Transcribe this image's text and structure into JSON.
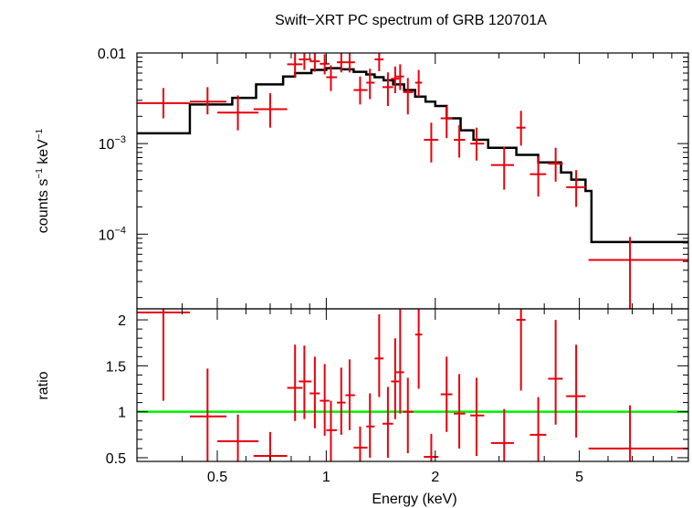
{
  "title": "Swift−XRT PC spectrum of GRB 120701A",
  "colors": {
    "data": "#e8000b",
    "model": "#000000",
    "unity": "#00ee00",
    "axes": "#000000"
  },
  "chart_data": [
    {
      "type": "scatter",
      "panel": "spectrum",
      "title": "Swift−XRT PC spectrum of GRB 120701A",
      "ylabel_parts": {
        "counts": "counts s",
        "neg1a": "−1",
        "kev": " keV",
        "neg1b": "−1"
      },
      "xscale": "log",
      "yscale": "log",
      "xlim": [
        0.3,
        10.0
      ],
      "ylim": [
        1.5e-05,
        0.01
      ],
      "ytick_labels": [
        {
          "value": 0.01,
          "base": "0.01",
          "exp": ""
        },
        {
          "value": 0.001,
          "base": "10",
          "exp": "−3"
        },
        {
          "value": 0.0001,
          "base": "10",
          "exp": "−4"
        }
      ],
      "series": [
        {
          "kind": "data",
          "points": [
            {
              "x": 0.355,
              "xlo": 0.3,
              "xhi": 0.42,
              "y": 0.0028,
              "ylo": 0.0019,
              "yhi": 0.0041
            },
            {
              "x": 0.47,
              "xlo": 0.42,
              "xhi": 0.53,
              "y": 0.0029,
              "ylo": 0.0021,
              "yhi": 0.0042
            },
            {
              "x": 0.57,
              "xlo": 0.5,
              "xhi": 0.65,
              "y": 0.0022,
              "ylo": 0.0014,
              "yhi": 0.0034
            },
            {
              "x": 0.7,
              "xlo": 0.63,
              "xhi": 0.78,
              "y": 0.0024,
              "ylo": 0.0015,
              "yhi": 0.0036
            },
            {
              "x": 0.82,
              "xlo": 0.78,
              "xhi": 0.86,
              "y": 0.0075,
              "ylo": 0.0054,
              "yhi": 0.0101
            },
            {
              "x": 0.87,
              "xlo": 0.84,
              "xhi": 0.91,
              "y": 0.0085,
              "ylo": 0.0065,
              "yhi": 0.0108
            },
            {
              "x": 0.93,
              "xlo": 0.9,
              "xhi": 0.96,
              "y": 0.0081,
              "ylo": 0.0062,
              "yhi": 0.0103
            },
            {
              "x": 0.99,
              "xlo": 0.96,
              "xhi": 1.02,
              "y": 0.0076,
              "ylo": 0.0058,
              "yhi": 0.0097
            },
            {
              "x": 1.03,
              "xlo": 1.0,
              "xhi": 1.07,
              "y": 0.0054,
              "ylo": 0.0038,
              "yhi": 0.0073
            },
            {
              "x": 1.1,
              "xlo": 1.07,
              "xhi": 1.13,
              "y": 0.0079,
              "ylo": 0.0061,
              "yhi": 0.0101
            },
            {
              "x": 1.16,
              "xlo": 1.13,
              "xhi": 1.2,
              "y": 0.0079,
              "ylo": 0.0061,
              "yhi": 0.0101
            },
            {
              "x": 1.24,
              "xlo": 1.19,
              "xhi": 1.3,
              "y": 0.0039,
              "ylo": 0.0027,
              "yhi": 0.0055
            },
            {
              "x": 1.32,
              "xlo": 1.29,
              "xhi": 1.36,
              "y": 0.0047,
              "ylo": 0.0031,
              "yhi": 0.0067
            },
            {
              "x": 1.4,
              "xlo": 1.36,
              "xhi": 1.44,
              "y": 0.0085,
              "ylo": 0.0063,
              "yhi": 0.0107
            },
            {
              "x": 1.48,
              "xlo": 1.43,
              "xhi": 1.53,
              "y": 0.0042,
              "ylo": 0.0026,
              "yhi": 0.0061
            },
            {
              "x": 1.55,
              "xlo": 1.51,
              "xhi": 1.59,
              "y": 0.0052,
              "ylo": 0.0036,
              "yhi": 0.0071
            },
            {
              "x": 1.6,
              "xlo": 1.56,
              "xhi": 1.64,
              "y": 0.0055,
              "ylo": 0.0039,
              "yhi": 0.0075
            },
            {
              "x": 1.68,
              "xlo": 1.63,
              "xhi": 1.74,
              "y": 0.0037,
              "ylo": 0.0021,
              "yhi": 0.0053
            },
            {
              "x": 1.8,
              "xlo": 1.76,
              "xhi": 1.84,
              "y": 0.0047,
              "ylo": 0.0033,
              "yhi": 0.0065
            },
            {
              "x": 1.95,
              "xlo": 1.86,
              "xhi": 2.04,
              "y": 0.0011,
              "ylo": 0.00062,
              "yhi": 0.0017
            },
            {
              "x": 2.15,
              "xlo": 2.07,
              "xhi": 2.23,
              "y": 0.0019,
              "ylo": 0.00115,
              "yhi": 0.0026
            },
            {
              "x": 2.33,
              "xlo": 2.25,
              "xhi": 2.42,
              "y": 0.0011,
              "ylo": 0.0007,
              "yhi": 0.0016
            },
            {
              "x": 2.6,
              "xlo": 2.5,
              "xhi": 2.73,
              "y": 0.001,
              "ylo": 0.00065,
              "yhi": 0.0015
            },
            {
              "x": 3.1,
              "xlo": 2.85,
              "xhi": 3.3,
              "y": 0.00058,
              "ylo": 0.00031,
              "yhi": 0.00092
            },
            {
              "x": 3.45,
              "xlo": 3.35,
              "xhi": 3.55,
              "y": 0.0015,
              "ylo": 0.00095,
              "yhi": 0.0023
            },
            {
              "x": 3.85,
              "xlo": 3.65,
              "xhi": 4.05,
              "y": 0.00046,
              "ylo": 0.00026,
              "yhi": 0.00072
            },
            {
              "x": 4.3,
              "xlo": 4.1,
              "xhi": 4.5,
              "y": 0.0006,
              "ylo": 0.00038,
              "yhi": 0.0009
            },
            {
              "x": 4.9,
              "xlo": 4.6,
              "xhi": 5.2,
              "y": 0.00033,
              "ylo": 0.0002,
              "yhi": 0.00051
            },
            {
              "x": 6.9,
              "xlo": 5.3,
              "xhi": 10.0,
              "y": 5.2e-05,
              "ylo": 1.5e-05,
              "yhi": 9.3e-05
            }
          ]
        },
        {
          "kind": "model",
          "steps": [
            [
              0.3,
              0.0013
            ],
            [
              0.42,
              0.0027
            ],
            [
              0.55,
              0.0032
            ],
            [
              0.64,
              0.0045
            ],
            [
              0.76,
              0.0055
            ],
            [
              0.82,
              0.006
            ],
            [
              0.91,
              0.0065
            ],
            [
              1.0,
              0.0068
            ],
            [
              1.1,
              0.0066
            ],
            [
              1.19,
              0.0062
            ],
            [
              1.29,
              0.0058
            ],
            [
              1.36,
              0.0054
            ],
            [
              1.44,
              0.005
            ],
            [
              1.53,
              0.0045
            ],
            [
              1.64,
              0.0039
            ],
            [
              1.76,
              0.0033
            ],
            [
              1.88,
              0.0029
            ],
            [
              2.0,
              0.0026
            ],
            [
              2.15,
              0.0019
            ],
            [
              2.35,
              0.0014
            ],
            [
              2.55,
              0.0011
            ],
            [
              2.8,
              0.0009
            ],
            [
              3.35,
              0.00075
            ],
            [
              3.85,
              0.00062
            ],
            [
              4.45,
              0.00048
            ],
            [
              4.75,
              0.0004
            ],
            [
              5.2,
              0.0003
            ],
            [
              5.4,
              8.2e-05
            ]
          ],
          "end_x": 10.0
        }
      ]
    },
    {
      "type": "scatter",
      "panel": "ratio",
      "ylabel": "ratio",
      "xlabel": "Energy (keV)",
      "xscale": "log",
      "xlim": [
        0.3,
        10.0
      ],
      "ylim": [
        0.46,
        2.12
      ],
      "xticks": [
        {
          "value": 0.5,
          "label": "0.5"
        },
        {
          "value": 1,
          "label": "1"
        },
        {
          "value": 2,
          "label": "2"
        },
        {
          "value": 5,
          "label": "5"
        }
      ],
      "yticks": [
        {
          "value": 0.5,
          "label": "0.5"
        },
        {
          "value": 1,
          "label": "1"
        },
        {
          "value": 1.5,
          "label": "1.5"
        },
        {
          "value": 2,
          "label": "2"
        }
      ],
      "unity": 1,
      "series": [
        {
          "kind": "data",
          "points": [
            {
              "x": 0.355,
              "xlo": 0.3,
              "xhi": 0.42,
              "y": 2.08,
              "ylo": 1.12,
              "yhi": 2.12
            },
            {
              "x": 0.47,
              "xlo": 0.42,
              "xhi": 0.53,
              "y": 0.95,
              "ylo": 0.46,
              "yhi": 1.47
            },
            {
              "x": 0.57,
              "xlo": 0.5,
              "xhi": 0.65,
              "y": 0.68,
              "ylo": 0.46,
              "yhi": 0.97
            },
            {
              "x": 0.7,
              "xlo": 0.63,
              "xhi": 0.78,
              "y": 0.52,
              "ylo": 0.46,
              "yhi": 0.78
            },
            {
              "x": 0.82,
              "xlo": 0.78,
              "xhi": 0.86,
              "y": 1.26,
              "ylo": 0.9,
              "yhi": 1.73
            },
            {
              "x": 0.87,
              "xlo": 0.84,
              "xhi": 0.91,
              "y": 1.33,
              "ylo": 0.92,
              "yhi": 1.72
            },
            {
              "x": 0.93,
              "xlo": 0.9,
              "xhi": 0.96,
              "y": 1.2,
              "ylo": 0.82,
              "yhi": 1.6
            },
            {
              "x": 0.99,
              "xlo": 0.96,
              "xhi": 1.02,
              "y": 1.12,
              "ylo": 0.74,
              "yhi": 1.52
            },
            {
              "x": 1.03,
              "xlo": 1.0,
              "xhi": 1.07,
              "y": 0.8,
              "ylo": 0.46,
              "yhi": 1.12
            },
            {
              "x": 1.1,
              "xlo": 1.07,
              "xhi": 1.13,
              "y": 1.1,
              "ylo": 0.75,
              "yhi": 1.48
            },
            {
              "x": 1.16,
              "xlo": 1.13,
              "xhi": 1.2,
              "y": 1.18,
              "ylo": 0.8,
              "yhi": 1.57
            },
            {
              "x": 1.24,
              "xlo": 1.19,
              "xhi": 1.3,
              "y": 0.61,
              "ylo": 0.46,
              "yhi": 0.84
            },
            {
              "x": 1.32,
              "xlo": 1.29,
              "xhi": 1.36,
              "y": 0.84,
              "ylo": 0.5,
              "yhi": 1.2
            },
            {
              "x": 1.4,
              "xlo": 1.36,
              "xhi": 1.44,
              "y": 1.58,
              "ylo": 1.16,
              "yhi": 2.06
            },
            {
              "x": 1.48,
              "xlo": 1.43,
              "xhi": 1.53,
              "y": 0.87,
              "ylo": 0.5,
              "yhi": 1.27
            },
            {
              "x": 1.55,
              "xlo": 1.51,
              "xhi": 1.59,
              "y": 1.33,
              "ylo": 0.92,
              "yhi": 1.8
            },
            {
              "x": 1.6,
              "xlo": 1.56,
              "xhi": 1.64,
              "y": 1.43,
              "ylo": 0.98,
              "yhi": 2.12
            },
            {
              "x": 1.68,
              "xlo": 1.63,
              "xhi": 1.74,
              "y": 1.0,
              "ylo": 0.55,
              "yhi": 1.37
            },
            {
              "x": 1.8,
              "xlo": 1.76,
              "xhi": 1.84,
              "y": 1.84,
              "ylo": 1.25,
              "yhi": 2.12
            },
            {
              "x": 1.95,
              "xlo": 1.86,
              "xhi": 2.04,
              "y": 0.51,
              "ylo": 0.46,
              "yhi": 0.76
            },
            {
              "x": 2.15,
              "xlo": 2.07,
              "xhi": 2.23,
              "y": 1.19,
              "ylo": 0.78,
              "yhi": 1.6
            },
            {
              "x": 2.33,
              "xlo": 2.25,
              "xhi": 2.42,
              "y": 0.98,
              "ylo": 0.6,
              "yhi": 1.41
            },
            {
              "x": 2.6,
              "xlo": 2.5,
              "xhi": 2.73,
              "y": 0.96,
              "ylo": 0.52,
              "yhi": 1.37
            },
            {
              "x": 3.1,
              "xlo": 2.85,
              "xhi": 3.3,
              "y": 0.66,
              "ylo": 0.46,
              "yhi": 1.03
            },
            {
              "x": 3.45,
              "xlo": 3.35,
              "xhi": 3.55,
              "y": 2.0,
              "ylo": 1.23,
              "yhi": 2.12
            },
            {
              "x": 3.85,
              "xlo": 3.65,
              "xhi": 4.05,
              "y": 0.75,
              "ylo": 0.46,
              "yhi": 1.16
            },
            {
              "x": 4.3,
              "xlo": 4.1,
              "xhi": 4.5,
              "y": 1.36,
              "ylo": 0.86,
              "yhi": 2.0
            },
            {
              "x": 4.9,
              "xlo": 4.6,
              "xhi": 5.2,
              "y": 1.17,
              "ylo": 0.72,
              "yhi": 1.73
            },
            {
              "x": 6.9,
              "xlo": 5.3,
              "xhi": 10.0,
              "y": 0.6,
              "ylo": 0.46,
              "yhi": 1.07
            }
          ]
        }
      ]
    }
  ]
}
